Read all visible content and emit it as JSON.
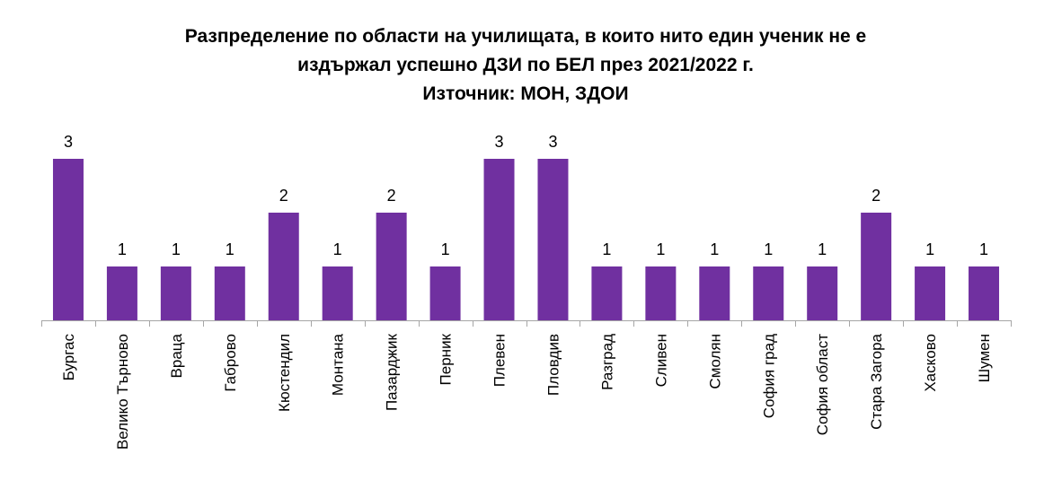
{
  "chart_data": {
    "type": "bar",
    "title_lines": [
      "Разпределение по области на училищата, в които нито един ученик не е",
      "издържал успешно ДЗИ по БЕЛ през 2021/2022 г.",
      "Източник: МОН, ЗДОИ"
    ],
    "categories": [
      "Бургас",
      "Велико Търново",
      "Враца",
      "Габрово",
      "Кюстендил",
      "Монтана",
      "Пазарджик",
      "Перник",
      "Плевен",
      "Пловдив",
      "Разград",
      "Сливен",
      "Смолян",
      "София град",
      "София област",
      "Стара Загора",
      "Хасково",
      "Шумен"
    ],
    "values": [
      3,
      1,
      1,
      1,
      2,
      1,
      2,
      1,
      3,
      3,
      1,
      1,
      1,
      1,
      1,
      2,
      1,
      1
    ],
    "xlabel": "",
    "ylabel": "",
    "ylim": [
      0,
      3
    ],
    "grid": false,
    "legend": "none",
    "bar_color": "#7030A0",
    "axis_color": "#A6A6A6"
  }
}
